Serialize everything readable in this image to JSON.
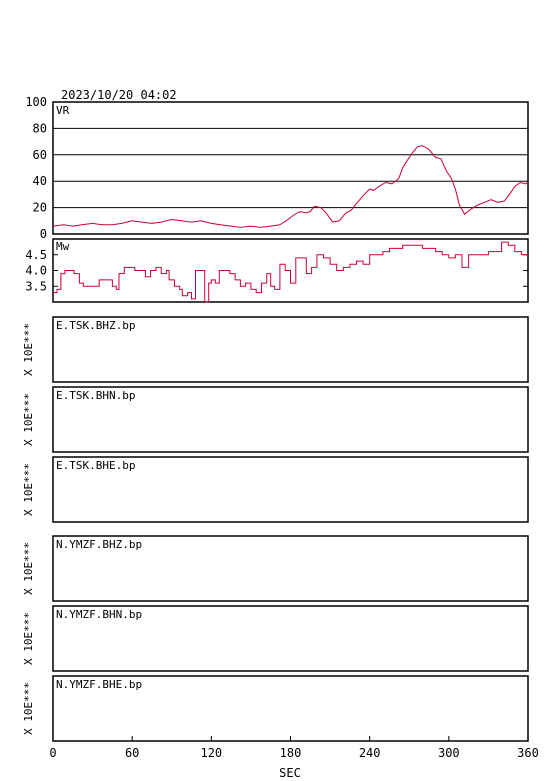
{
  "header": {
    "datetime": "2023/10/20 04:02"
  },
  "chart_data": [
    {
      "type": "line",
      "panel": "vr",
      "label": "VR",
      "ylim": [
        0,
        100
      ],
      "yticks": [
        "0",
        "20",
        "40",
        "60",
        "80",
        "100"
      ],
      "grid": true,
      "xlim": [
        0,
        360
      ],
      "color": "#cc0033",
      "x": [
        0,
        8,
        15,
        22,
        30,
        37,
        45,
        52,
        60,
        67,
        75,
        82,
        90,
        97,
        105,
        112,
        120,
        127,
        135,
        142,
        150,
        157,
        165,
        172,
        178,
        182,
        187,
        192,
        195,
        198,
        203,
        207,
        212,
        217,
        222,
        226,
        230,
        235,
        240,
        243,
        247,
        252,
        257,
        262,
        265,
        268,
        272,
        276,
        280,
        285,
        290,
        294,
        298,
        302,
        305,
        308,
        312,
        317,
        322,
        327,
        332,
        337,
        342,
        346,
        350,
        354,
        358,
        360
      ],
      "y": [
        6,
        7,
        6,
        7,
        8,
        7,
        7,
        8,
        10,
        9,
        8,
        9,
        11,
        10,
        9,
        10,
        8,
        7,
        6,
        5,
        6,
        5,
        6,
        7,
        11,
        14,
        17,
        16,
        17,
        21,
        20,
        16,
        9,
        10,
        16,
        18,
        23,
        29,
        34,
        33,
        36,
        39,
        38,
        42,
        50,
        55,
        61,
        66,
        67,
        64,
        58,
        57,
        48,
        42,
        34,
        22,
        15,
        19,
        22,
        24,
        26,
        24,
        25,
        30,
        36,
        39,
        38,
        39
      ]
    },
    {
      "type": "line",
      "panel": "mw",
      "label": "Mw",
      "ylim": [
        3.0,
        5.0
      ],
      "yticks": [
        "3.5",
        "4.0",
        "4.5"
      ],
      "xlim": [
        0,
        360
      ],
      "color": "#cc0033",
      "x": [
        0,
        3,
        6,
        9,
        12,
        16,
        20,
        23,
        26,
        30,
        35,
        40,
        45,
        48,
        50,
        54,
        58,
        62,
        66,
        70,
        74,
        78,
        82,
        86,
        88,
        92,
        96,
        98,
        102,
        105,
        108,
        112,
        115,
        118,
        120,
        123,
        126,
        130,
        134,
        138,
        142,
        146,
        150,
        154,
        158,
        162,
        165,
        168,
        172,
        176,
        180,
        184,
        188,
        192,
        196,
        200,
        205,
        210,
        215,
        220,
        225,
        230,
        235,
        240,
        245,
        250,
        255,
        260,
        265,
        270,
        275,
        280,
        285,
        290,
        295,
        300,
        305,
        310,
        315,
        320,
        325,
        330,
        335,
        340,
        345,
        350,
        355,
        360
      ],
      "y": [
        3.3,
        3.4,
        3.9,
        4.0,
        4.0,
        3.9,
        3.6,
        3.5,
        3.5,
        3.5,
        3.7,
        3.7,
        3.5,
        3.4,
        3.9,
        4.1,
        4.1,
        4.0,
        4.0,
        3.8,
        4.0,
        4.1,
        3.9,
        4.0,
        3.7,
        3.5,
        3.4,
        3.2,
        3.3,
        3.1,
        4.0,
        4.0,
        3.0,
        3.6,
        3.7,
        3.6,
        4.0,
        4.0,
        3.9,
        3.7,
        3.5,
        3.6,
        3.4,
        3.3,
        3.6,
        3.9,
        3.5,
        3.4,
        4.2,
        4.0,
        3.6,
        4.4,
        4.4,
        3.9,
        4.1,
        4.5,
        4.4,
        4.2,
        4.0,
        4.1,
        4.2,
        4.3,
        4.2,
        4.5,
        4.5,
        4.6,
        4.7,
        4.7,
        4.8,
        4.8,
        4.8,
        4.7,
        4.7,
        4.6,
        4.5,
        4.4,
        4.5,
        4.1,
        4.5,
        4.5,
        4.5,
        4.6,
        4.6,
        4.9,
        4.8,
        4.6,
        4.5,
        4.5
      ]
    },
    {
      "type": "line",
      "x_axis": {
        "xlim": [
          0,
          360
        ],
        "ticks": [
          "0",
          "60",
          "120",
          "180",
          "240",
          "300",
          "360"
        ],
        "xlabel": "SEC"
      },
      "waveforms": [
        {
          "station": "E.TSK.BHZ.bp",
          "scale": "X 10E***"
        },
        {
          "station": "E.TSK.BHN.bp",
          "scale": "X 10E***"
        },
        {
          "station": "E.TSK.BHE.bp",
          "scale": "X 10E***"
        },
        {
          "station": "N.YMZF.BHZ.bp",
          "scale": "X 10E***"
        },
        {
          "station": "N.YMZF.BHN.bp",
          "scale": "X 10E***"
        },
        {
          "station": "N.YMZF.BHE.bp",
          "scale": "X 10E***"
        }
      ]
    }
  ]
}
